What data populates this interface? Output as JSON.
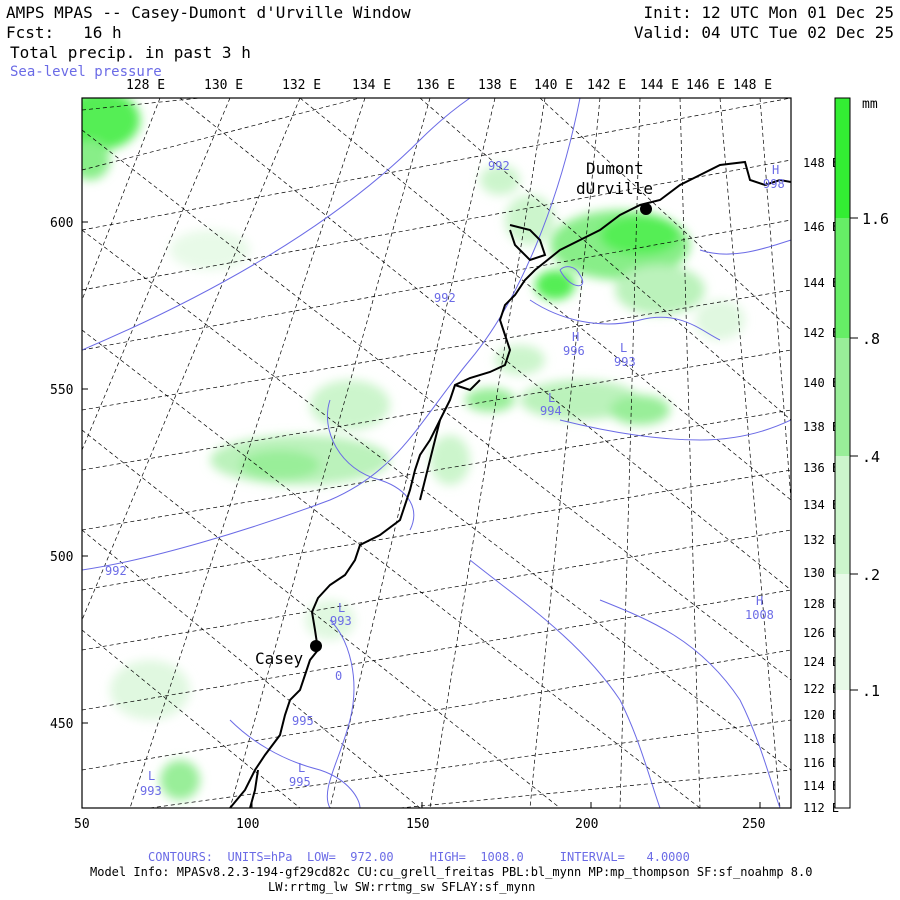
{
  "header": {
    "title": "AMPS MPAS -- Casey-Dumont d'Urville Window",
    "fcst": "Fcst:   16 h",
    "field": "Total precip. in past 3 h",
    "overlay": "Sea-level pressure",
    "init": "Init: 12 UTC Mon 01 Dec 25",
    "valid": "Valid: 04 UTC Tue 02 Dec 25"
  },
  "map": {
    "top_lon_labels": [
      "128 E",
      "130 E",
      "132 E",
      "134 E",
      "136 E",
      "138 E",
      "140 E",
      "142 E",
      "144 E",
      "146 E",
      "148 E"
    ],
    "right_lat_labels": [
      "148 E",
      "146 E",
      "144 E",
      "142 E",
      "140 E",
      "138 E",
      "136 E",
      "134 E",
      "132 E",
      "130 E",
      "128 E",
      "126 E",
      "124 E",
      "122 E",
      "120 E",
      "118 E",
      "116 E",
      "114 E",
      "112 E"
    ],
    "x_ticks": [
      "50",
      "100",
      "150",
      "200",
      "250"
    ],
    "y_ticks": [
      "600",
      "550",
      "500",
      "450"
    ],
    "stations": [
      {
        "name": "Dumont",
        "name2": "dUrville"
      },
      {
        "name": "Casey"
      }
    ],
    "pressure_labels": [
      {
        "text": "992"
      },
      {
        "text": "992"
      },
      {
        "text": "992"
      },
      {
        "text": "993"
      },
      {
        "text": "993"
      },
      {
        "text": "994"
      },
      {
        "text": "996"
      },
      {
        "text": "993"
      },
      {
        "text": "995"
      },
      {
        "text": "995"
      },
      {
        "text": "993"
      },
      {
        "text": "1008"
      },
      {
        "text": "998"
      },
      {
        "text": "0"
      }
    ],
    "pressure_marks": [
      "H",
      "L",
      "L",
      "H",
      "L",
      "L",
      "L",
      "H",
      "L"
    ]
  },
  "colorbar": {
    "unit": "mm",
    "labels": [
      "1.6",
      ".8",
      ".4",
      ".2",
      ".1"
    ],
    "colors": [
      "#33ee33",
      "#66ee66",
      "#99ee99",
      "#ccf5cc",
      "#e8fae8"
    ]
  },
  "footer": {
    "contours": "CONTOURS:  UNITS=hPa  LOW=  972.00     HIGH=  1008.0     INTERVAL=   4.0000",
    "model1": "Model Info: MPASv8.2.3-194-gf29cd82c CU:cu_grell_freitas PBL:bl_mynn MP:mp_thompson SF:sf_noahmp 8.0",
    "model2": "LW:rrtmg_lw SW:rrtmg_sw SFLAY:sf_mynn"
  },
  "colors": {
    "contour": "#6b6be6",
    "coast": "#000000",
    "grid": "#000000"
  }
}
